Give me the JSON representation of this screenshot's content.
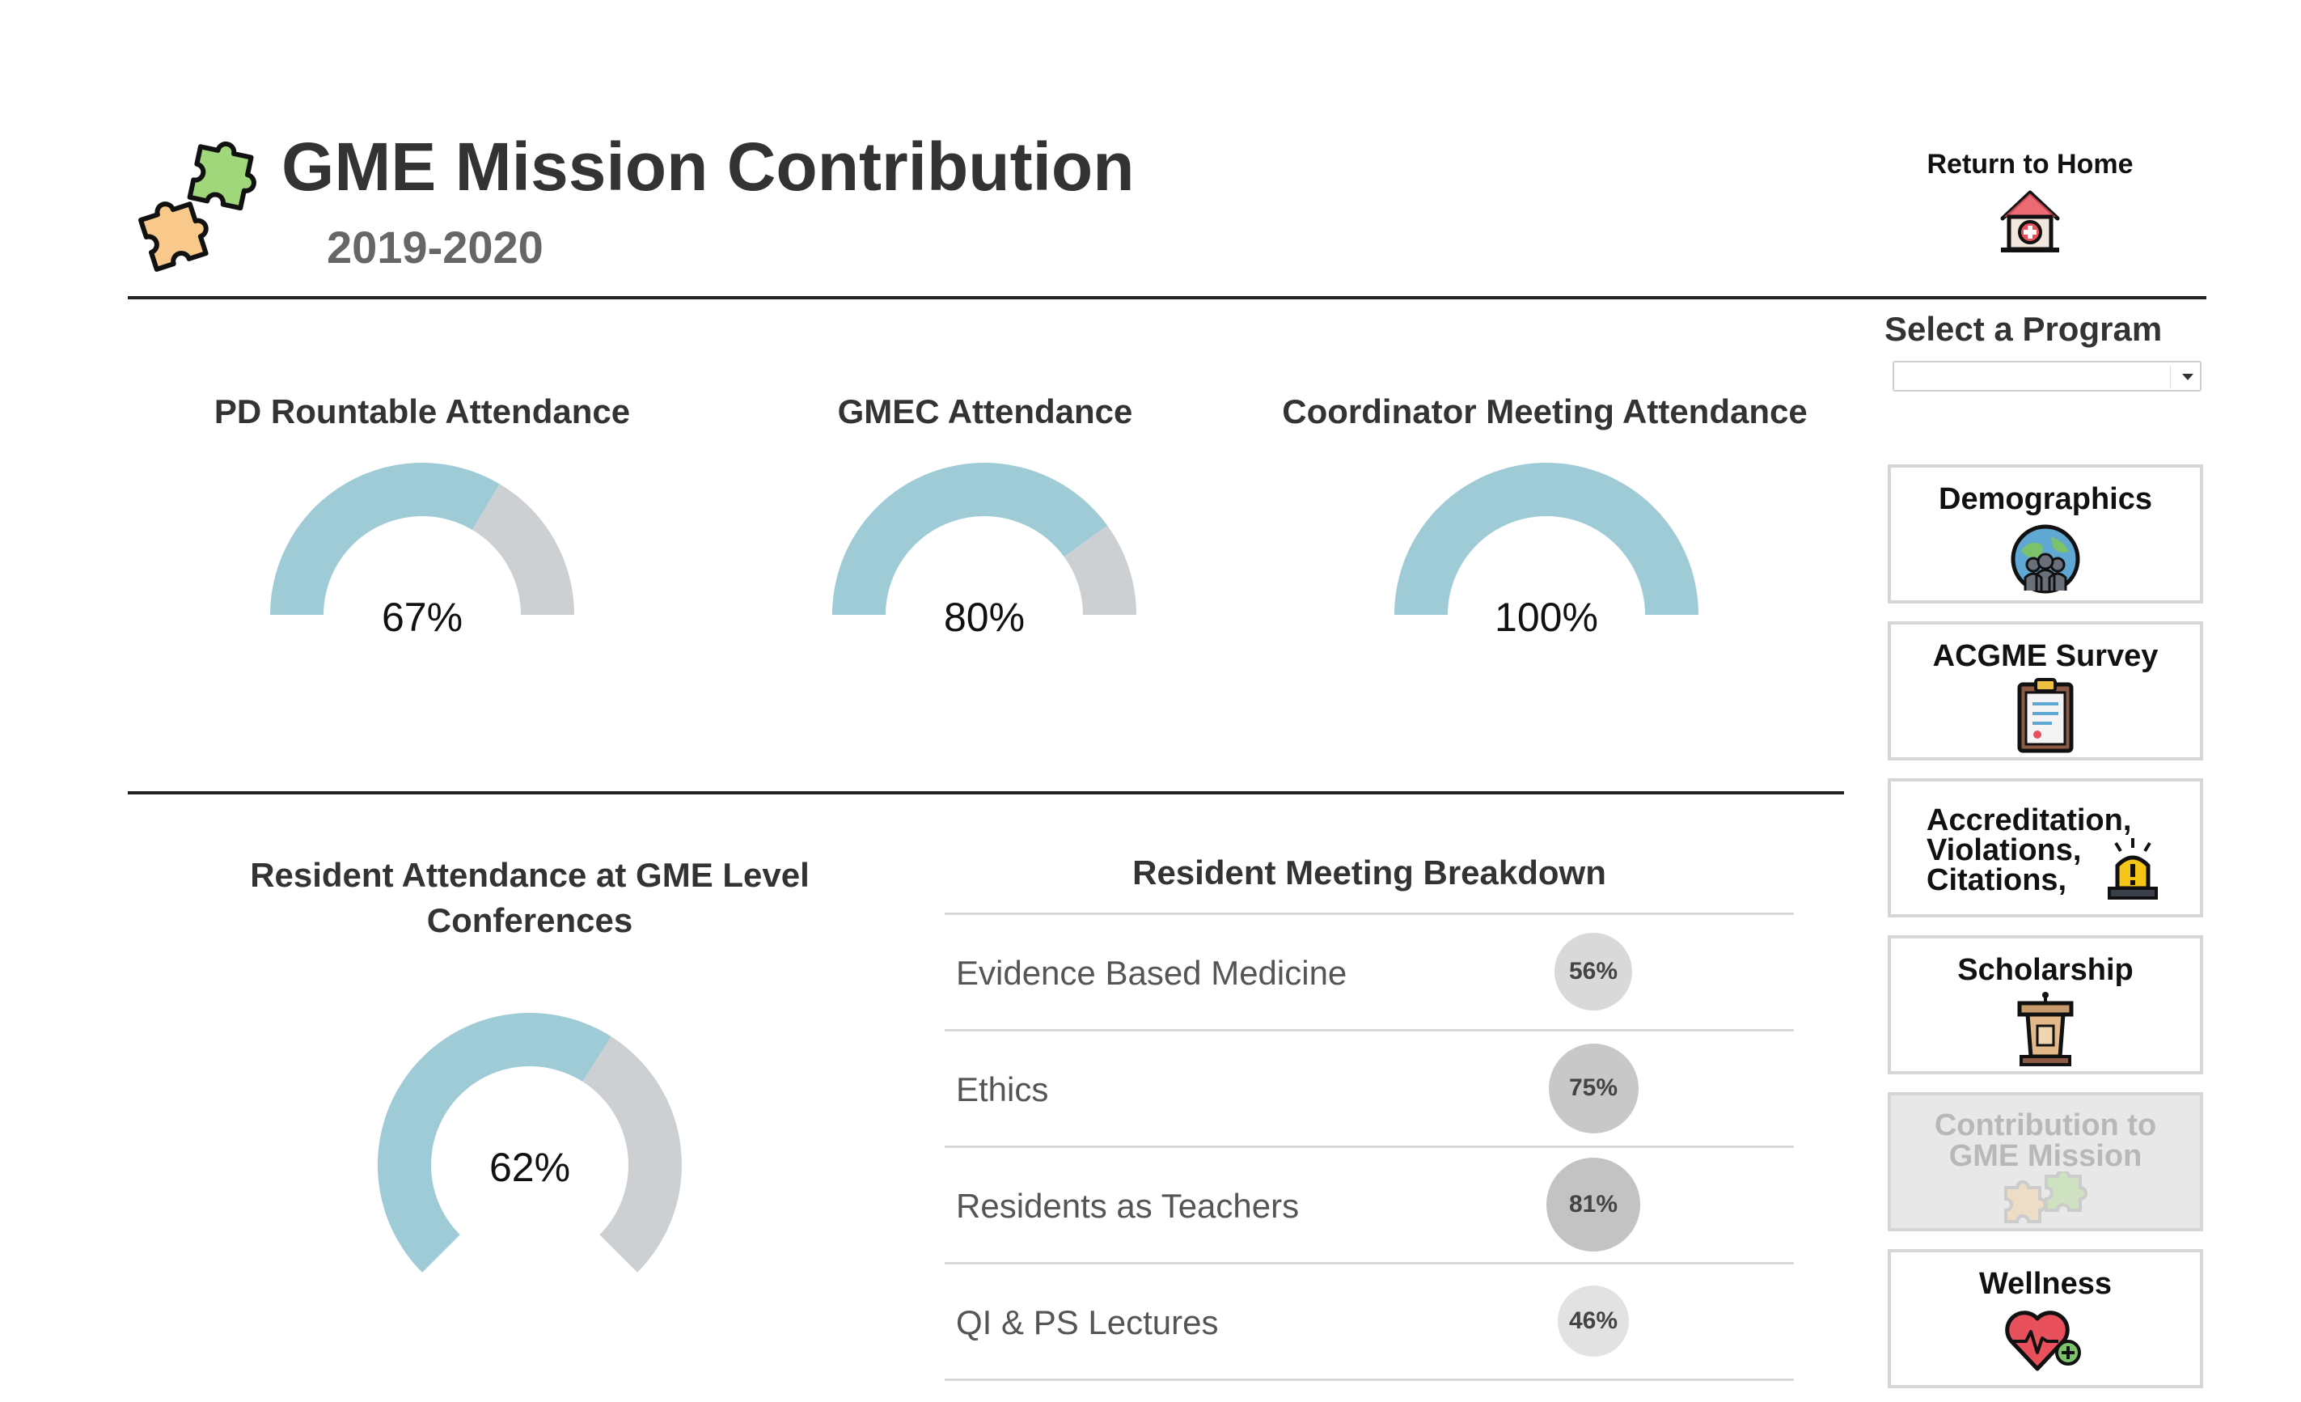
{
  "header": {
    "title": "GME Mission Contribution",
    "year": "2019-2020"
  },
  "return_home": {
    "label": "Return to Home"
  },
  "program_select": {
    "title": "Select a Program",
    "value": ""
  },
  "gauges": [
    {
      "title": "PD Rountable Attendance",
      "value_label": "67%",
      "value": 0.67
    },
    {
      "title": "GMEC Attendance",
      "value_label": "80%",
      "value": 0.8
    },
    {
      "title": "Coordinator Meeting Attendance",
      "value_label": "100%",
      "value": 1.0
    }
  ],
  "conference": {
    "title_line1": "Resident Attendance at GME Level",
    "title_line2": "Conferences",
    "value_label": "62%",
    "value": 0.62
  },
  "breakdown": {
    "title": "Resident Meeting Breakdown",
    "rows": [
      {
        "label": "Evidence Based Medicine",
        "pct": "56%",
        "value": 0.56
      },
      {
        "label": "Ethics",
        "pct": "75%",
        "value": 0.75
      },
      {
        "label": "Residents as Teachers",
        "pct": "81%",
        "value": 0.81
      },
      {
        "label": "QI & PS Lectures",
        "pct": "46%",
        "value": 0.46
      }
    ]
  },
  "nav": {
    "demographics": "Demographics",
    "acgme_survey": "ACGME Survey",
    "accreditation_1": "Accreditation,",
    "accreditation_2": "Violations,",
    "accreditation_3": "Citations,",
    "scholarship": "Scholarship",
    "contribution_1": "Contribution to",
    "contribution_2": "GME Mission",
    "wellness": "Wellness"
  },
  "colors": {
    "gauge_fill": "#9ecbd6",
    "gauge_rest": "#cdd0d3",
    "puzzle_green": "#9fd77a",
    "puzzle_orange": "#f8c98a",
    "heart": "#e8505b"
  }
}
